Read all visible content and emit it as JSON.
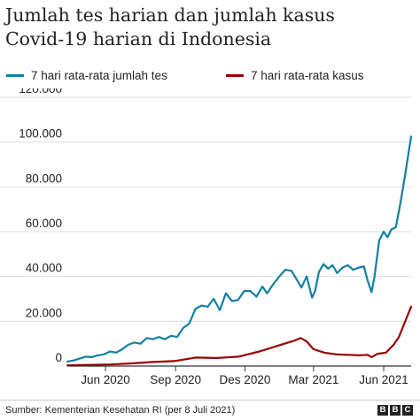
{
  "title_line1": "Jumlah tes harian dan jumlah kasus",
  "title_line2": "Covid-19 harian di Indonesia",
  "legend": [
    {
      "label": "7 hari rata-rata jumlah tes",
      "color": "#1380a1"
    },
    {
      "label": "7 hari rata-rata kasus",
      "color": "#990000"
    }
  ],
  "source": "Sumber: Kementerian Kesehatan RI (per 8 Juli 2021)",
  "logo": [
    "B",
    "B",
    "C"
  ],
  "colors": {
    "gridline": "#dddddd",
    "baseline": "#333333",
    "text": "#222222"
  },
  "chart_data": {
    "type": "line",
    "ylim": [
      0,
      120000
    ],
    "xlim": [
      "2020-04-12",
      "2021-07-07"
    ],
    "y_ticks": [
      {
        "value": 0,
        "label": "0"
      },
      {
        "value": 20000,
        "label": "20.000"
      },
      {
        "value": 40000,
        "label": "40.000"
      },
      {
        "value": 60000,
        "label": "60.000"
      },
      {
        "value": 80000,
        "label": "80.000"
      },
      {
        "value": 100000,
        "label": "100.000"
      },
      {
        "value": 120000,
        "label": "120.000"
      }
    ],
    "x_ticks": [
      {
        "date": "2020-06-01",
        "label": "Jun 2020"
      },
      {
        "date": "2020-09-01",
        "label": "Sep 2020"
      },
      {
        "date": "2020-12-01",
        "label": "Des 2020"
      },
      {
        "date": "2021-03-01",
        "label": "Mar 2021"
      },
      {
        "date": "2021-06-01",
        "label": "Jun 2021"
      }
    ],
    "grid": true,
    "series": [
      {
        "name": "7 hari rata-rata jumlah tes",
        "color": "#1380a1",
        "points": [
          [
            "2020-04-12",
            2000
          ],
          [
            "2020-04-20",
            2500
          ],
          [
            "2020-04-28",
            3300
          ],
          [
            "2020-05-06",
            4200
          ],
          [
            "2020-05-14",
            4000
          ],
          [
            "2020-05-22",
            4800
          ],
          [
            "2020-05-30",
            5200
          ],
          [
            "2020-06-07",
            6500
          ],
          [
            "2020-06-15",
            6000
          ],
          [
            "2020-06-23",
            7500
          ],
          [
            "2020-07-01",
            9500
          ],
          [
            "2020-07-09",
            10500
          ],
          [
            "2020-07-17",
            10000
          ],
          [
            "2020-07-25",
            12500
          ],
          [
            "2020-08-02",
            12000
          ],
          [
            "2020-08-10",
            13000
          ],
          [
            "2020-08-18",
            12000
          ],
          [
            "2020-08-26",
            13500
          ],
          [
            "2020-09-03",
            13000
          ],
          [
            "2020-09-11",
            17000
          ],
          [
            "2020-09-19",
            19000
          ],
          [
            "2020-09-27",
            25500
          ],
          [
            "2020-10-05",
            27000
          ],
          [
            "2020-10-13",
            26500
          ],
          [
            "2020-10-21",
            30000
          ],
          [
            "2020-10-29",
            25000
          ],
          [
            "2020-11-06",
            32500
          ],
          [
            "2020-11-14",
            29000
          ],
          [
            "2020-11-22",
            29500
          ],
          [
            "2020-11-30",
            33500
          ],
          [
            "2020-12-08",
            33500
          ],
          [
            "2020-12-16",
            31000
          ],
          [
            "2020-12-24",
            35500
          ],
          [
            "2020-12-30",
            32500
          ],
          [
            "2021-01-07",
            36500
          ],
          [
            "2021-01-15",
            40000
          ],
          [
            "2021-01-23",
            43000
          ],
          [
            "2021-01-31",
            42500
          ],
          [
            "2021-02-08",
            38000
          ],
          [
            "2021-02-13",
            35000
          ],
          [
            "2021-02-20",
            40000
          ],
          [
            "2021-02-27",
            30500
          ],
          [
            "2021-03-03",
            33500
          ],
          [
            "2021-03-08",
            42000
          ],
          [
            "2021-03-14",
            45500
          ],
          [
            "2021-03-20",
            43500
          ],
          [
            "2021-03-26",
            45000
          ],
          [
            "2021-04-01",
            41500
          ],
          [
            "2021-04-08",
            44000
          ],
          [
            "2021-04-15",
            45000
          ],
          [
            "2021-04-22",
            43000
          ],
          [
            "2021-04-30",
            44000
          ],
          [
            "2021-05-06",
            44500
          ],
          [
            "2021-05-11",
            38000
          ],
          [
            "2021-05-16",
            33000
          ],
          [
            "2021-05-20",
            40000
          ],
          [
            "2021-05-26",
            56000
          ],
          [
            "2021-06-01",
            60000
          ],
          [
            "2021-06-06",
            57500
          ],
          [
            "2021-06-11",
            61000
          ],
          [
            "2021-06-17",
            62000
          ],
          [
            "2021-06-23",
            73000
          ],
          [
            "2021-06-29",
            85000
          ],
          [
            "2021-07-07",
            102500
          ]
        ]
      },
      {
        "name": "7 hari rata-rata kasus",
        "color": "#990000",
        "points": [
          [
            "2020-04-12",
            300
          ],
          [
            "2020-05-10",
            500
          ],
          [
            "2020-06-07",
            700
          ],
          [
            "2020-07-05",
            1200
          ],
          [
            "2020-08-02",
            1800
          ],
          [
            "2020-08-30",
            2200
          ],
          [
            "2020-09-27",
            3800
          ],
          [
            "2020-10-25",
            3600
          ],
          [
            "2020-11-22",
            4200
          ],
          [
            "2020-12-20",
            6500
          ],
          [
            "2021-01-17",
            9500
          ],
          [
            "2021-02-05",
            11500
          ],
          [
            "2021-02-12",
            12500
          ],
          [
            "2021-02-20",
            11000
          ],
          [
            "2021-03-01",
            7500
          ],
          [
            "2021-03-15",
            6000
          ],
          [
            "2021-03-31",
            5200
          ],
          [
            "2021-04-15",
            5000
          ],
          [
            "2021-04-30",
            4800
          ],
          [
            "2021-05-11",
            5000
          ],
          [
            "2021-05-16",
            4000
          ],
          [
            "2021-05-24",
            5500
          ],
          [
            "2021-06-04",
            6000
          ],
          [
            "2021-06-14",
            9500
          ],
          [
            "2021-06-21",
            13000
          ],
          [
            "2021-06-28",
            19000
          ],
          [
            "2021-07-07",
            26500
          ]
        ]
      }
    ]
  }
}
